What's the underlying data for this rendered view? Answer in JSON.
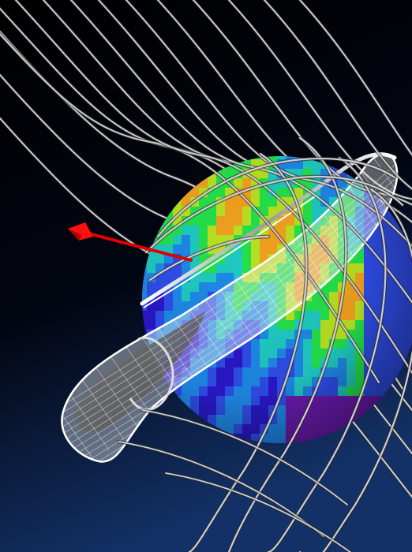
{
  "scene": {
    "background_top": "#000000",
    "background_bottom": "#123063",
    "sphere_palette": [
      "#2a18c8",
      "#2f4de8",
      "#1e88e6",
      "#1fc9c0",
      "#24e04a",
      "#b8e022",
      "#f0a020",
      "#6b1bb0"
    ],
    "field_line_color": "#cfcfcf",
    "shell_color": "#f2f2f2",
    "arrow_color": "#e00000"
  }
}
